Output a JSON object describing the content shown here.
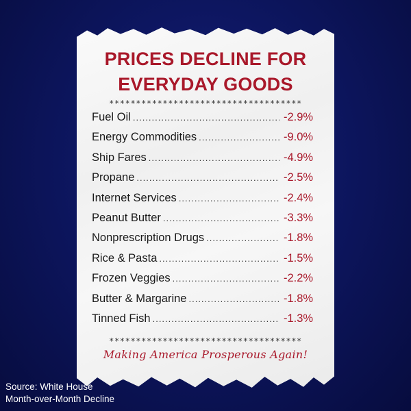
{
  "receipt": {
    "title_line1": "PRICES DECLINE FOR",
    "title_line2": "EVERYDAY GOODS",
    "stars": "************************************",
    "items": [
      {
        "label": "Fuel Oil",
        "value": "-2.9%"
      },
      {
        "label": "Energy Commodities",
        "value": "-9.0%"
      },
      {
        "label": "Ship Fares",
        "value": "-4.9%"
      },
      {
        "label": "Propane",
        "value": "-2.5%"
      },
      {
        "label": "Internet Services",
        "value": "-2.4%"
      },
      {
        "label": "Peanut Butter",
        "value": "-3.3%"
      },
      {
        "label": "Nonprescription Drugs",
        "value": "-1.8%"
      },
      {
        "label": "Rice & Pasta",
        "value": "-1.5%"
      },
      {
        "label": "Frozen Veggies",
        "value": "-2.2%"
      },
      {
        "label": "Butter & Margarine",
        "value": "-1.8%"
      },
      {
        "label": "Tinned Fish",
        "value": "-1.3%"
      }
    ],
    "tagline": "Making America Prosperous Again!"
  },
  "footer": {
    "source": "Source: White House",
    "note": "Month-over-Month Decline"
  },
  "colors": {
    "accent": "#a9182a",
    "background": "#0d1660",
    "paper": "#f5f5f5"
  }
}
